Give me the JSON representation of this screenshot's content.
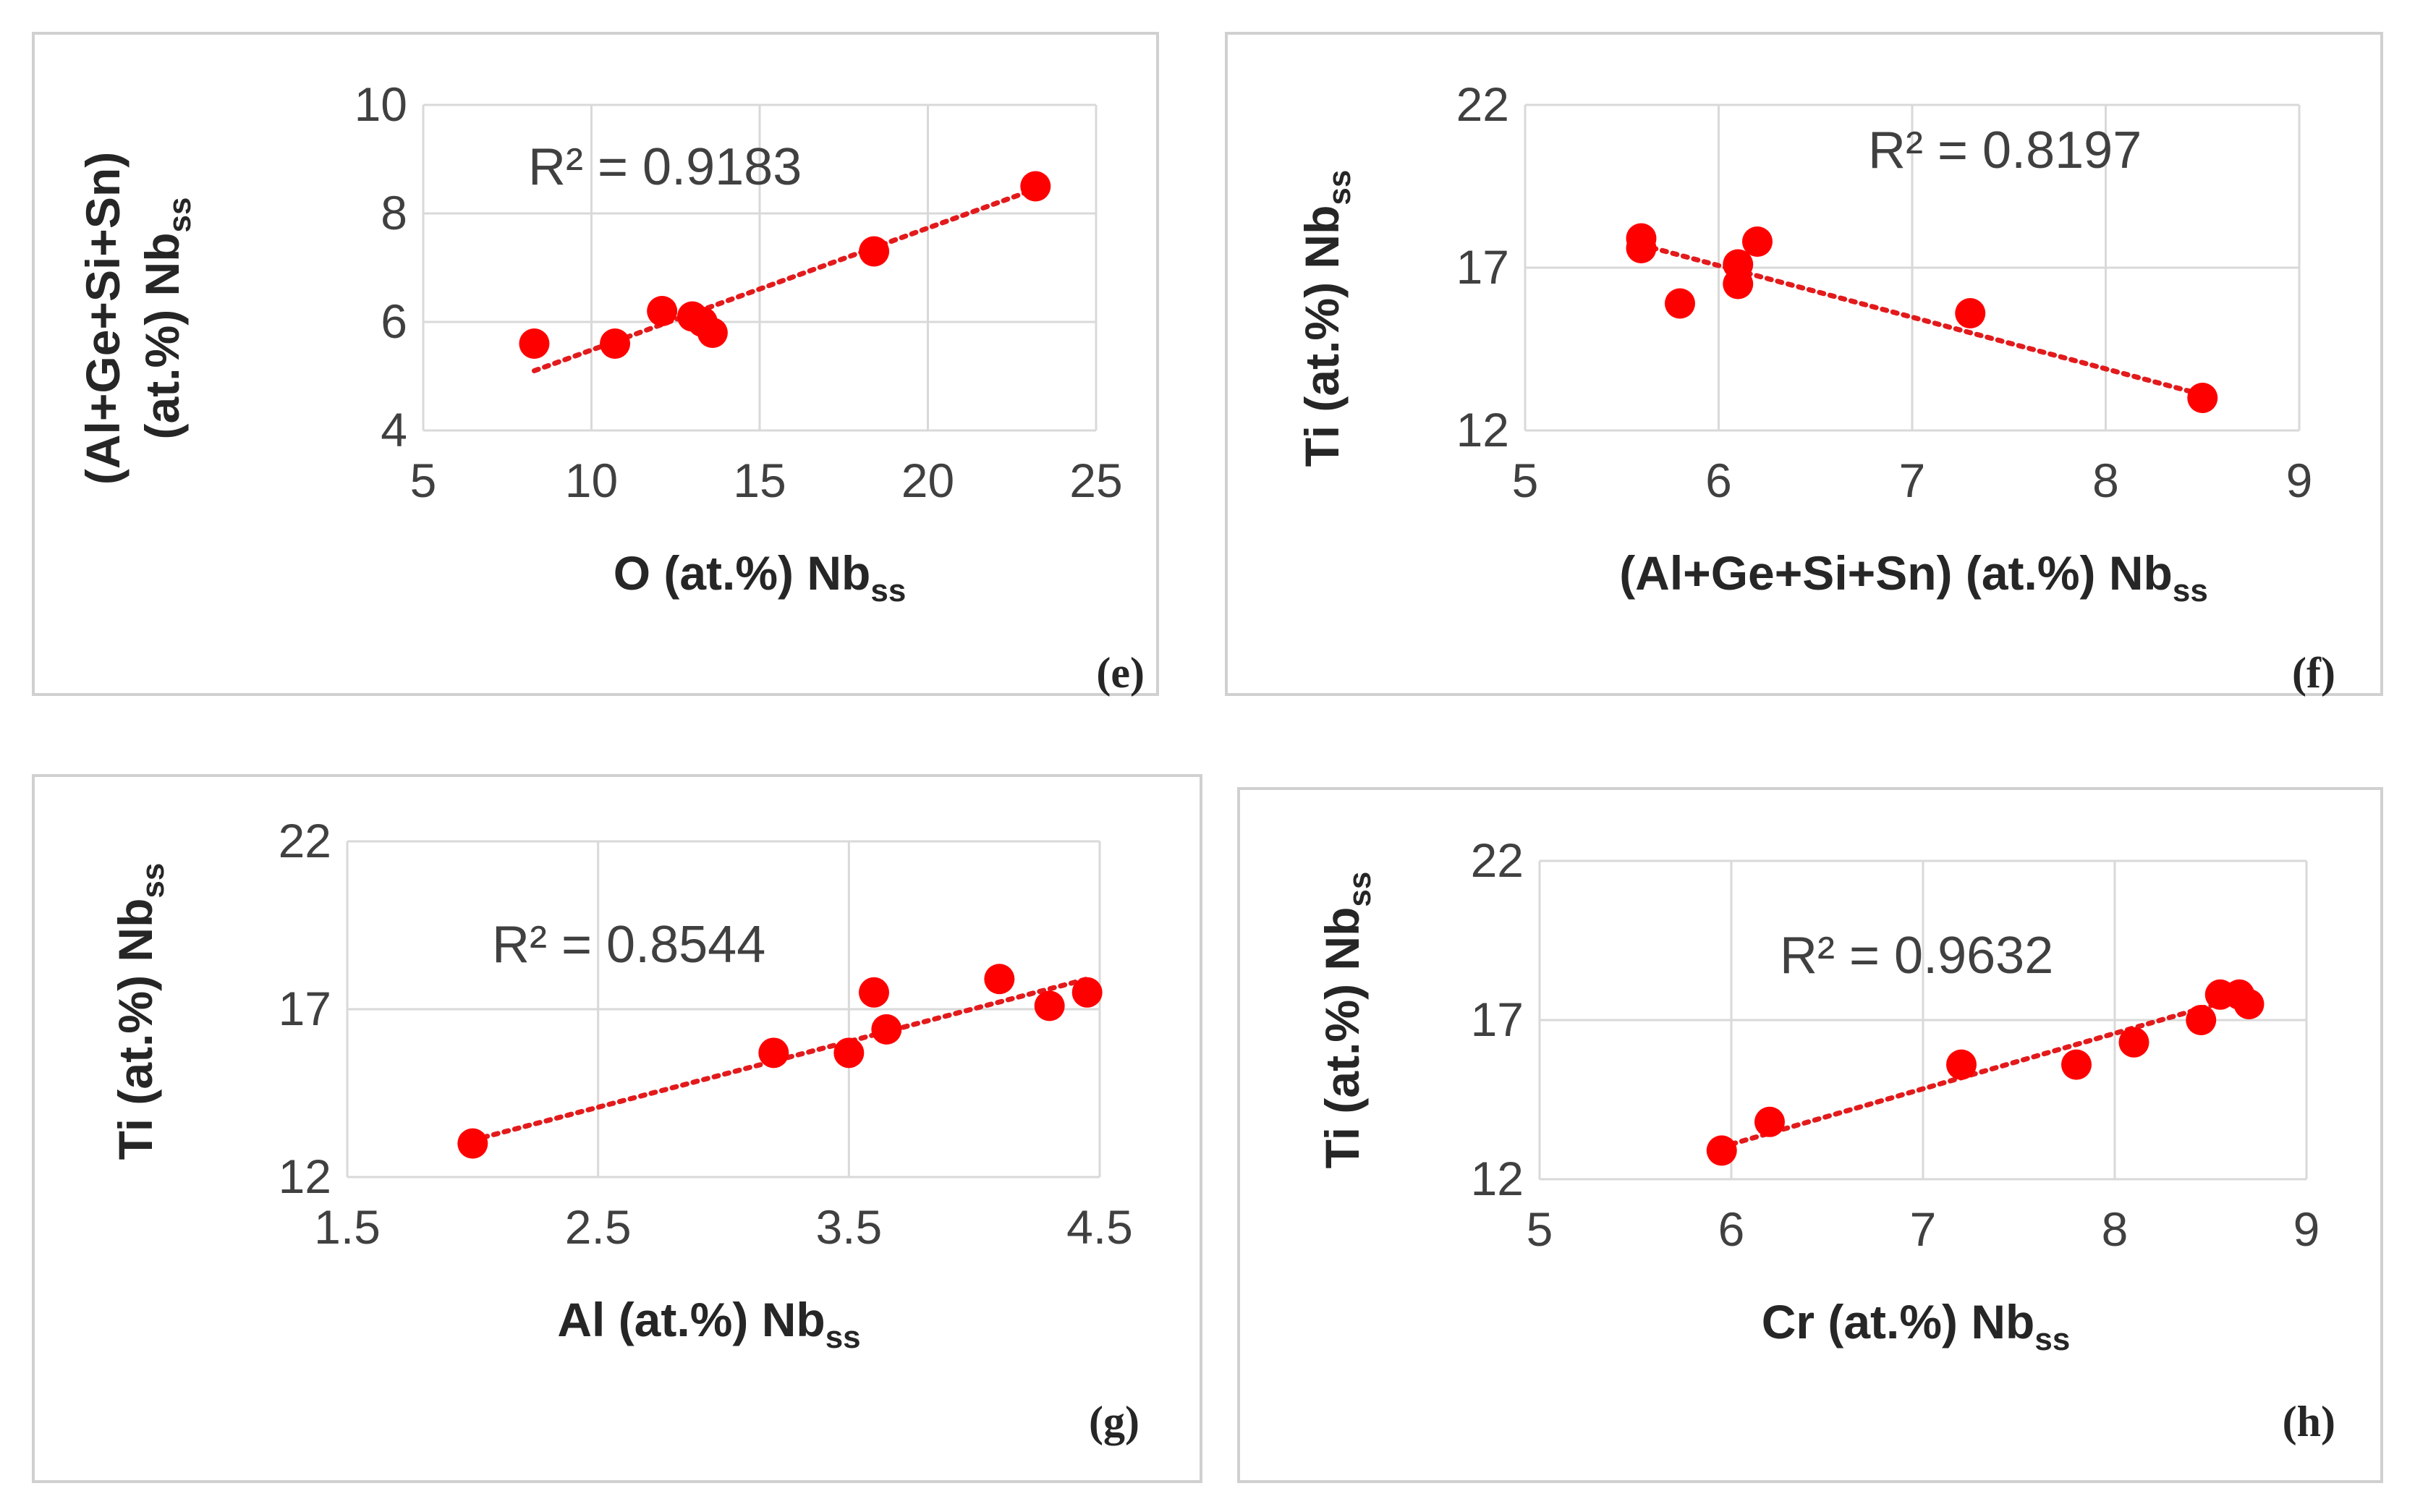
{
  "chart_data": [
    {
      "type": "scatter",
      "panel": "(e)",
      "xlabel": "O (at.%) Nb",
      "xlabel_sub": "ss",
      "ylabel_line1": "(Al+Ge+Si+Sn)",
      "ylabel_line2": "(at.%) Nb",
      "ylabel_sub": "ss",
      "xlim": [
        5,
        25
      ],
      "ylim": [
        4,
        10
      ],
      "xticks": [
        5,
        10,
        15,
        20,
        25
      ],
      "yticks": [
        4,
        6,
        8,
        10
      ],
      "r2_label": "R² = 0.9183",
      "trendline": {
        "x": [
          8.3,
          23.2
        ],
        "y": [
          5.1,
          8.45
        ]
      },
      "points": [
        {
          "x": 8.3,
          "y": 5.6
        },
        {
          "x": 10.7,
          "y": 5.6
        },
        {
          "x": 12.1,
          "y": 6.2
        },
        {
          "x": 13.0,
          "y": 6.1
        },
        {
          "x": 13.3,
          "y": 6.0
        },
        {
          "x": 13.6,
          "y": 5.8
        },
        {
          "x": 18.4,
          "y": 7.3
        },
        {
          "x": 23.2,
          "y": 8.5
        }
      ]
    },
    {
      "type": "scatter",
      "panel": "(f)",
      "xlabel": "(Al+Ge+Si+Sn) (at.%) Nb",
      "xlabel_sub": "ss",
      "ylabel_line1": "Ti (at.%) Nb",
      "ylabel_line2": "",
      "ylabel_sub": "ss",
      "xlim": [
        5,
        9
      ],
      "ylim": [
        12,
        22
      ],
      "xticks": [
        5,
        6,
        7,
        8,
        9
      ],
      "yticks": [
        12,
        17,
        22
      ],
      "r2_label": "R² = 0.8197",
      "trendline": {
        "x": [
          5.6,
          8.5
        ],
        "y": [
          17.7,
          13.1
        ]
      },
      "points": [
        {
          "x": 5.6,
          "y": 17.9
        },
        {
          "x": 5.6,
          "y": 17.6
        },
        {
          "x": 5.8,
          "y": 15.9
        },
        {
          "x": 6.1,
          "y": 17.1
        },
        {
          "x": 6.1,
          "y": 16.5
        },
        {
          "x": 6.2,
          "y": 17.8
        },
        {
          "x": 7.3,
          "y": 15.6
        },
        {
          "x": 8.5,
          "y": 13.0
        }
      ]
    },
    {
      "type": "scatter",
      "panel": "(g)",
      "xlabel": "Al (at.%) Nb",
      "xlabel_sub": "ss",
      "ylabel_line1": "Ti (at.%) Nb",
      "ylabel_line2": "",
      "ylabel_sub": "ss",
      "xlim": [
        1.5,
        4.5
      ],
      "ylim": [
        12,
        22
      ],
      "xticks": [
        1.5,
        2.5,
        3.5,
        4.5
      ],
      "yticks": [
        12,
        17,
        22
      ],
      "r2_label": "R² = 0.8544",
      "trendline": {
        "x": [
          2.0,
          4.45
        ],
        "y": [
          13.1,
          17.9
        ]
      },
      "points": [
        {
          "x": 2.0,
          "y": 13.0
        },
        {
          "x": 3.2,
          "y": 15.7
        },
        {
          "x": 3.5,
          "y": 15.7
        },
        {
          "x": 3.6,
          "y": 17.5
        },
        {
          "x": 3.65,
          "y": 16.4
        },
        {
          "x": 4.1,
          "y": 17.9
        },
        {
          "x": 4.3,
          "y": 17.1
        },
        {
          "x": 4.45,
          "y": 17.5
        }
      ]
    },
    {
      "type": "scatter",
      "panel": "(h)",
      "xlabel": "Cr (at.%) Nb",
      "xlabel_sub": "ss",
      "ylabel_line1": "Ti (at.%) Nb",
      "ylabel_line2": "",
      "ylabel_sub": "ss",
      "xlim": [
        5,
        9
      ],
      "ylim": [
        12,
        22
      ],
      "xticks": [
        5,
        6,
        7,
        8,
        9
      ],
      "yticks": [
        12,
        17,
        22
      ],
      "r2_label": "R² = 0.9632",
      "trendline": {
        "x": [
          6.0,
          8.7
        ],
        "y": [
          13.1,
          17.8
        ]
      },
      "points": [
        {
          "x": 5.95,
          "y": 12.9
        },
        {
          "x": 6.2,
          "y": 13.8
        },
        {
          "x": 7.2,
          "y": 15.6
        },
        {
          "x": 7.8,
          "y": 15.6
        },
        {
          "x": 8.1,
          "y": 16.3
        },
        {
          "x": 8.45,
          "y": 17.0
        },
        {
          "x": 8.55,
          "y": 17.8
        },
        {
          "x": 8.65,
          "y": 17.8
        },
        {
          "x": 8.7,
          "y": 17.5
        }
      ]
    }
  ],
  "colors": {
    "marker": "#ff0000",
    "trendline": "#e31a1c",
    "grid": "#d9d9d9",
    "frame": "#d0d0d0"
  }
}
